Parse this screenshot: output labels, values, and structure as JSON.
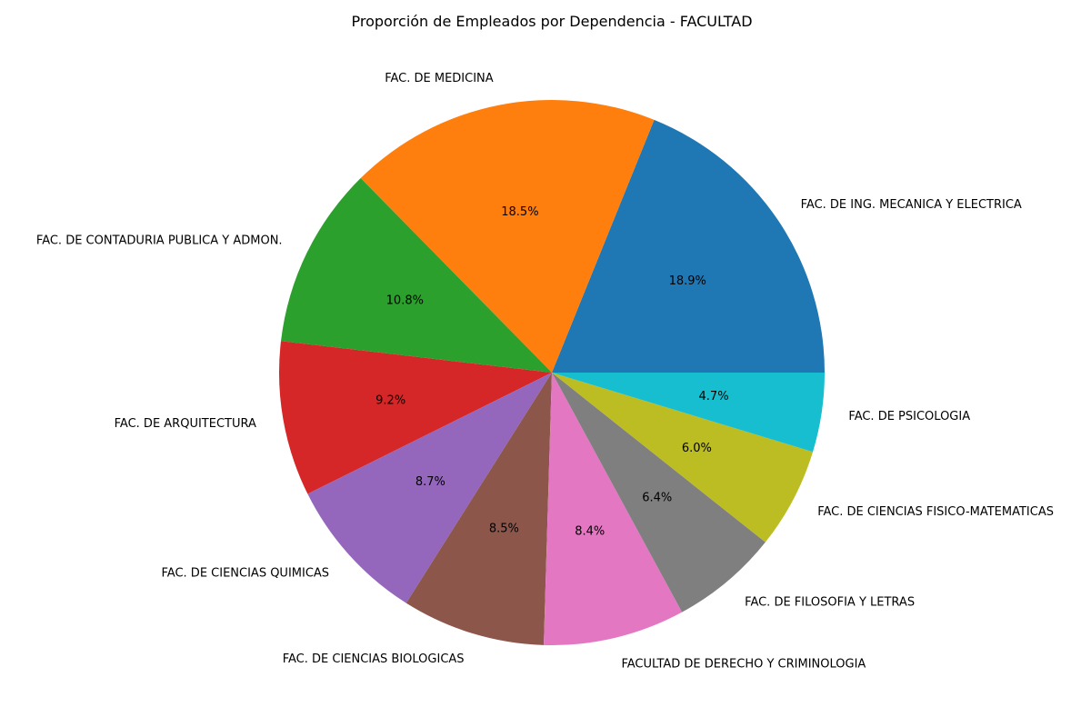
{
  "chart_data": {
    "type": "pie",
    "title": "Proporción de Empleados por Dependencia - FACULTAD",
    "start_angle_deg": 0,
    "direction": "counterclockwise",
    "slices": [
      {
        "label": "FAC. DE ING. MECANICA Y ELECTRICA",
        "value": 18.9,
        "pct_label": "18.9%",
        "color": "#1f77b4"
      },
      {
        "label": "FAC. DE MEDICINA",
        "value": 18.5,
        "pct_label": "18.5%",
        "color": "#ff7f0e"
      },
      {
        "label": "FAC. DE CONTADURIA PUBLICA Y ADMON.",
        "value": 10.8,
        "pct_label": "10.8%",
        "color": "#2ca02c"
      },
      {
        "label": "FAC. DE ARQUITECTURA",
        "value": 9.2,
        "pct_label": "9.2%",
        "color": "#d62728"
      },
      {
        "label": "FAC. DE CIENCIAS QUIMICAS",
        "value": 8.7,
        "pct_label": "8.7%",
        "color": "#9467bd"
      },
      {
        "label": "FAC. DE CIENCIAS BIOLOGICAS",
        "value": 8.5,
        "pct_label": "8.5%",
        "color": "#8c564b"
      },
      {
        "label": "FACULTAD DE DERECHO Y CRIMINOLOGIA",
        "value": 8.4,
        "pct_label": "8.4%",
        "color": "#e377c2"
      },
      {
        "label": "FAC. DE FILOSOFIA Y LETRAS",
        "value": 6.4,
        "pct_label": "6.4%",
        "color": "#7f7f7f"
      },
      {
        "label": "FAC. DE CIENCIAS FISICO-MATEMATICAS",
        "value": 6.0,
        "pct_label": "6.0%",
        "color": "#bcbd22"
      },
      {
        "label": "FAC. DE PSICOLOGIA",
        "value": 4.7,
        "pct_label": "4.7%",
        "color": "#17becf"
      }
    ]
  }
}
